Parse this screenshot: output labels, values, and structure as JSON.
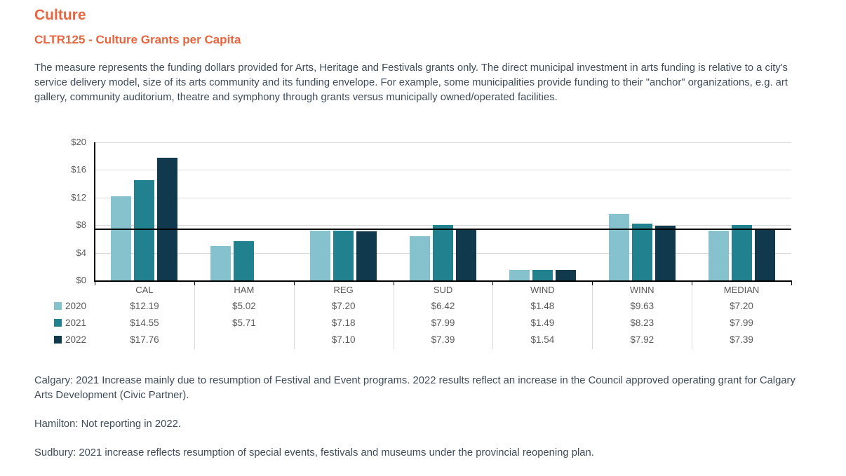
{
  "header": {
    "section_title": "Culture",
    "measure_title": "CLTR125 - Culture Grants per Capita",
    "description": "The measure represents the funding dollars provided for Arts, Heritage and Festivals grants only. The direct municipal investment in arts funding is relative to a city's service delivery model, size of its arts community and its funding envelope. For example, some municipalities provide funding to their \"anchor\" organizations, e.g. art gallery, community auditorium, theatre and symphony through grants versus municipally owned/operated facilities.",
    "accent_color": "#e9653f"
  },
  "chart_data": {
    "type": "bar",
    "title": "CLTR125 - Culture Grants per Capita",
    "categories": [
      "CAL",
      "HAM",
      "REG",
      "SUD",
      "WIND",
      "WINN",
      "MEDIAN"
    ],
    "series": [
      {
        "name": "2020",
        "color": "#86c1ce",
        "values": [
          12.19,
          5.02,
          7.2,
          6.42,
          1.48,
          9.63,
          7.2
        ],
        "labels": [
          "$12.19",
          "$5.02",
          "$7.20",
          "$6.42",
          "$1.48",
          "$9.63",
          "$7.20"
        ]
      },
      {
        "name": "2021",
        "color": "#21818f",
        "values": [
          14.55,
          5.71,
          7.18,
          7.99,
          1.49,
          8.23,
          7.99
        ],
        "labels": [
          "$14.55",
          "$5.71",
          "$7.18",
          "$7.99",
          "$1.49",
          "$8.23",
          "$7.99"
        ]
      },
      {
        "name": "2022",
        "color": "#10394e",
        "values": [
          17.76,
          null,
          7.1,
          7.39,
          1.54,
          7.92,
          7.39
        ],
        "labels": [
          "$17.76",
          "",
          "$7.10",
          "$7.39",
          "$1.54",
          "$7.92",
          "$7.39"
        ]
      }
    ],
    "y_ticks": [
      {
        "label": "$0",
        "value": 0
      },
      {
        "label": "$4",
        "value": 4
      },
      {
        "label": "$8",
        "value": 8
      },
      {
        "label": "$12",
        "value": 12
      },
      {
        "label": "$16",
        "value": 16
      },
      {
        "label": "$20",
        "value": 20
      }
    ],
    "ylim": [
      0,
      20
    ],
    "grid": true,
    "reference_line": 7.39,
    "legend_position": "table-left",
    "grid_color": "#d9d9d9",
    "axis_text_color": "#595959"
  },
  "footnotes": [
    "Calgary: 2021 Increase mainly due to resumption of Festival and Event programs. 2022 results reflect an increase in the Council approved operating grant for Calgary Arts Development (Civic Partner).",
    "Hamilton: Not reporting in 2022.",
    "Sudbury: 2021 increase reflects resumption of special events, festivals and museums under the provincial reopening plan."
  ]
}
